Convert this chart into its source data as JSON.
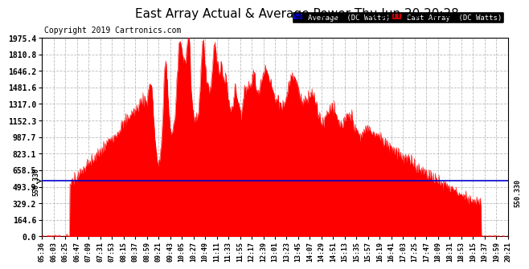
{
  "title": "East Array Actual & Average Power Thu Jun 20 20:28",
  "copyright": "Copyright 2019 Cartronics.com",
  "ylabel_right_values": [
    0.0,
    164.6,
    329.2,
    493.9,
    658.5,
    823.1,
    987.7,
    1152.3,
    1317.0,
    1481.6,
    1646.2,
    1810.8,
    1975.4
  ],
  "average_line_value": 550.33,
  "average_label": "550.330",
  "ylim": [
    0,
    1975.4
  ],
  "bg_color": "#ffffff",
  "plot_bg_color": "#ffffff",
  "grid_color": "#bbbbbb",
  "fill_color": "#ff0000",
  "line_color": "#0000cc",
  "legend_avg_color": "#0000cc",
  "legend_east_color": "#cc0000",
  "legend_avg_text": "Average  (DC Watts)",
  "legend_east_text": "East Array  (DC Watts)",
  "title_fontsize": 11,
  "copyright_fontsize": 7,
  "tick_fontsize": 6,
  "ytick_fontsize": 7,
  "x_tick_labels": [
    "05:36",
    "06:03",
    "06:25",
    "06:47",
    "07:09",
    "07:31",
    "07:53",
    "08:15",
    "08:37",
    "08:59",
    "09:21",
    "09:43",
    "10:05",
    "10:27",
    "10:49",
    "11:11",
    "11:33",
    "11:55",
    "12:17",
    "12:39",
    "13:01",
    "13:23",
    "13:45",
    "14:07",
    "14:29",
    "14:51",
    "15:13",
    "15:35",
    "15:57",
    "16:19",
    "16:41",
    "17:03",
    "17:25",
    "17:47",
    "18:09",
    "18:31",
    "18:53",
    "19:15",
    "19:37",
    "19:59",
    "20:21"
  ]
}
